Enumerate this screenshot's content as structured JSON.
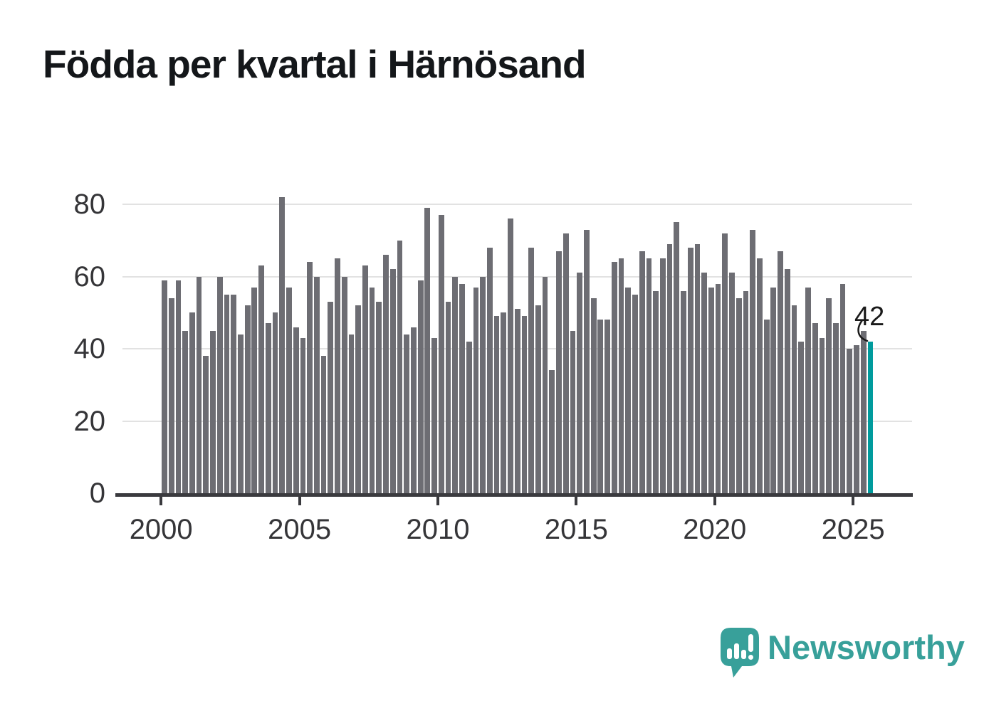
{
  "title": "Födda per kvartal i Härnösand",
  "annotation": {
    "last_value_label": "42"
  },
  "branding": {
    "name": "Newsworthy"
  },
  "colors": {
    "bar": "#6d6d73",
    "highlight": "#009b9d",
    "grid": "#e2e2e2",
    "axis": "#3a3a3e",
    "tick_text": "#353538",
    "title_text": "#14171a",
    "annotation_text": "#1a1a1a",
    "logo": "#38a09a"
  },
  "chart_data": {
    "type": "bar",
    "title": "Födda per kvartal i Härnösand",
    "xlabel": "",
    "ylabel": "",
    "ylim": [
      0,
      80
    ],
    "yticks": [
      0,
      20,
      40,
      60,
      80
    ],
    "xticks": [
      "2000",
      "2005",
      "2010",
      "2015",
      "2020",
      "2025"
    ],
    "grid": "horizontal",
    "legend": "none",
    "frequency": "quarterly",
    "highlight_last_bar": true,
    "categories": [
      "2000 Q1",
      "2000 Q2",
      "2000 Q3",
      "2000 Q4",
      "2001 Q1",
      "2001 Q2",
      "2001 Q3",
      "2001 Q4",
      "2002 Q1",
      "2002 Q2",
      "2002 Q3",
      "2002 Q4",
      "2003 Q1",
      "2003 Q2",
      "2003 Q3",
      "2003 Q4",
      "2004 Q1",
      "2004 Q2",
      "2004 Q3",
      "2004 Q4",
      "2005 Q1",
      "2005 Q2",
      "2005 Q3",
      "2005 Q4",
      "2006 Q1",
      "2006 Q2",
      "2006 Q3",
      "2006 Q4",
      "2007 Q1",
      "2007 Q2",
      "2007 Q3",
      "2007 Q4",
      "2008 Q1",
      "2008 Q2",
      "2008 Q3",
      "2008 Q4",
      "2009 Q1",
      "2009 Q2",
      "2009 Q3",
      "2009 Q4",
      "2010 Q1",
      "2010 Q2",
      "2010 Q3",
      "2010 Q4",
      "2011 Q1",
      "2011 Q2",
      "2011 Q3",
      "2011 Q4",
      "2012 Q1",
      "2012 Q2",
      "2012 Q3",
      "2012 Q4",
      "2013 Q1",
      "2013 Q2",
      "2013 Q3",
      "2013 Q4",
      "2014 Q1",
      "2014 Q2",
      "2014 Q3",
      "2014 Q4",
      "2015 Q1",
      "2015 Q2",
      "2015 Q3",
      "2015 Q4",
      "2016 Q1",
      "2016 Q2",
      "2016 Q3",
      "2016 Q4",
      "2017 Q1",
      "2017 Q2",
      "2017 Q3",
      "2017 Q4",
      "2018 Q1",
      "2018 Q2",
      "2018 Q3",
      "2018 Q4",
      "2019 Q1",
      "2019 Q2",
      "2019 Q3",
      "2019 Q4",
      "2020 Q1",
      "2020 Q2",
      "2020 Q3",
      "2020 Q4",
      "2021 Q1",
      "2021 Q2",
      "2021 Q3",
      "2021 Q4",
      "2022 Q1",
      "2022 Q2",
      "2022 Q3",
      "2022 Q4",
      "2023 Q1",
      "2023 Q2",
      "2023 Q3",
      "2023 Q4",
      "2024 Q1",
      "2024 Q2",
      "2024 Q3",
      "2024 Q4",
      "2025 Q1",
      "2025 Q2",
      "2025 Q3"
    ],
    "values": [
      59,
      54,
      59,
      45,
      50,
      60,
      38,
      45,
      60,
      55,
      55,
      44,
      52,
      57,
      63,
      47,
      50,
      82,
      57,
      46,
      43,
      64,
      60,
      38,
      53,
      65,
      60,
      44,
      52,
      63,
      57,
      53,
      66,
      62,
      70,
      44,
      46,
      59,
      79,
      43,
      77,
      53,
      60,
      58,
      42,
      57,
      60,
      68,
      49,
      50,
      76,
      51,
      49,
      68,
      52,
      60,
      34,
      67,
      72,
      45,
      61,
      73,
      54,
      48,
      48,
      64,
      65,
      57,
      55,
      67,
      65,
      56,
      65,
      69,
      75,
      56,
      68,
      69,
      61,
      57,
      58,
      72,
      61,
      54,
      56,
      73,
      65,
      48,
      57,
      67,
      62,
      52,
      42,
      57,
      47,
      43,
      54,
      47,
      58,
      40,
      41,
      45,
      42
    ]
  }
}
